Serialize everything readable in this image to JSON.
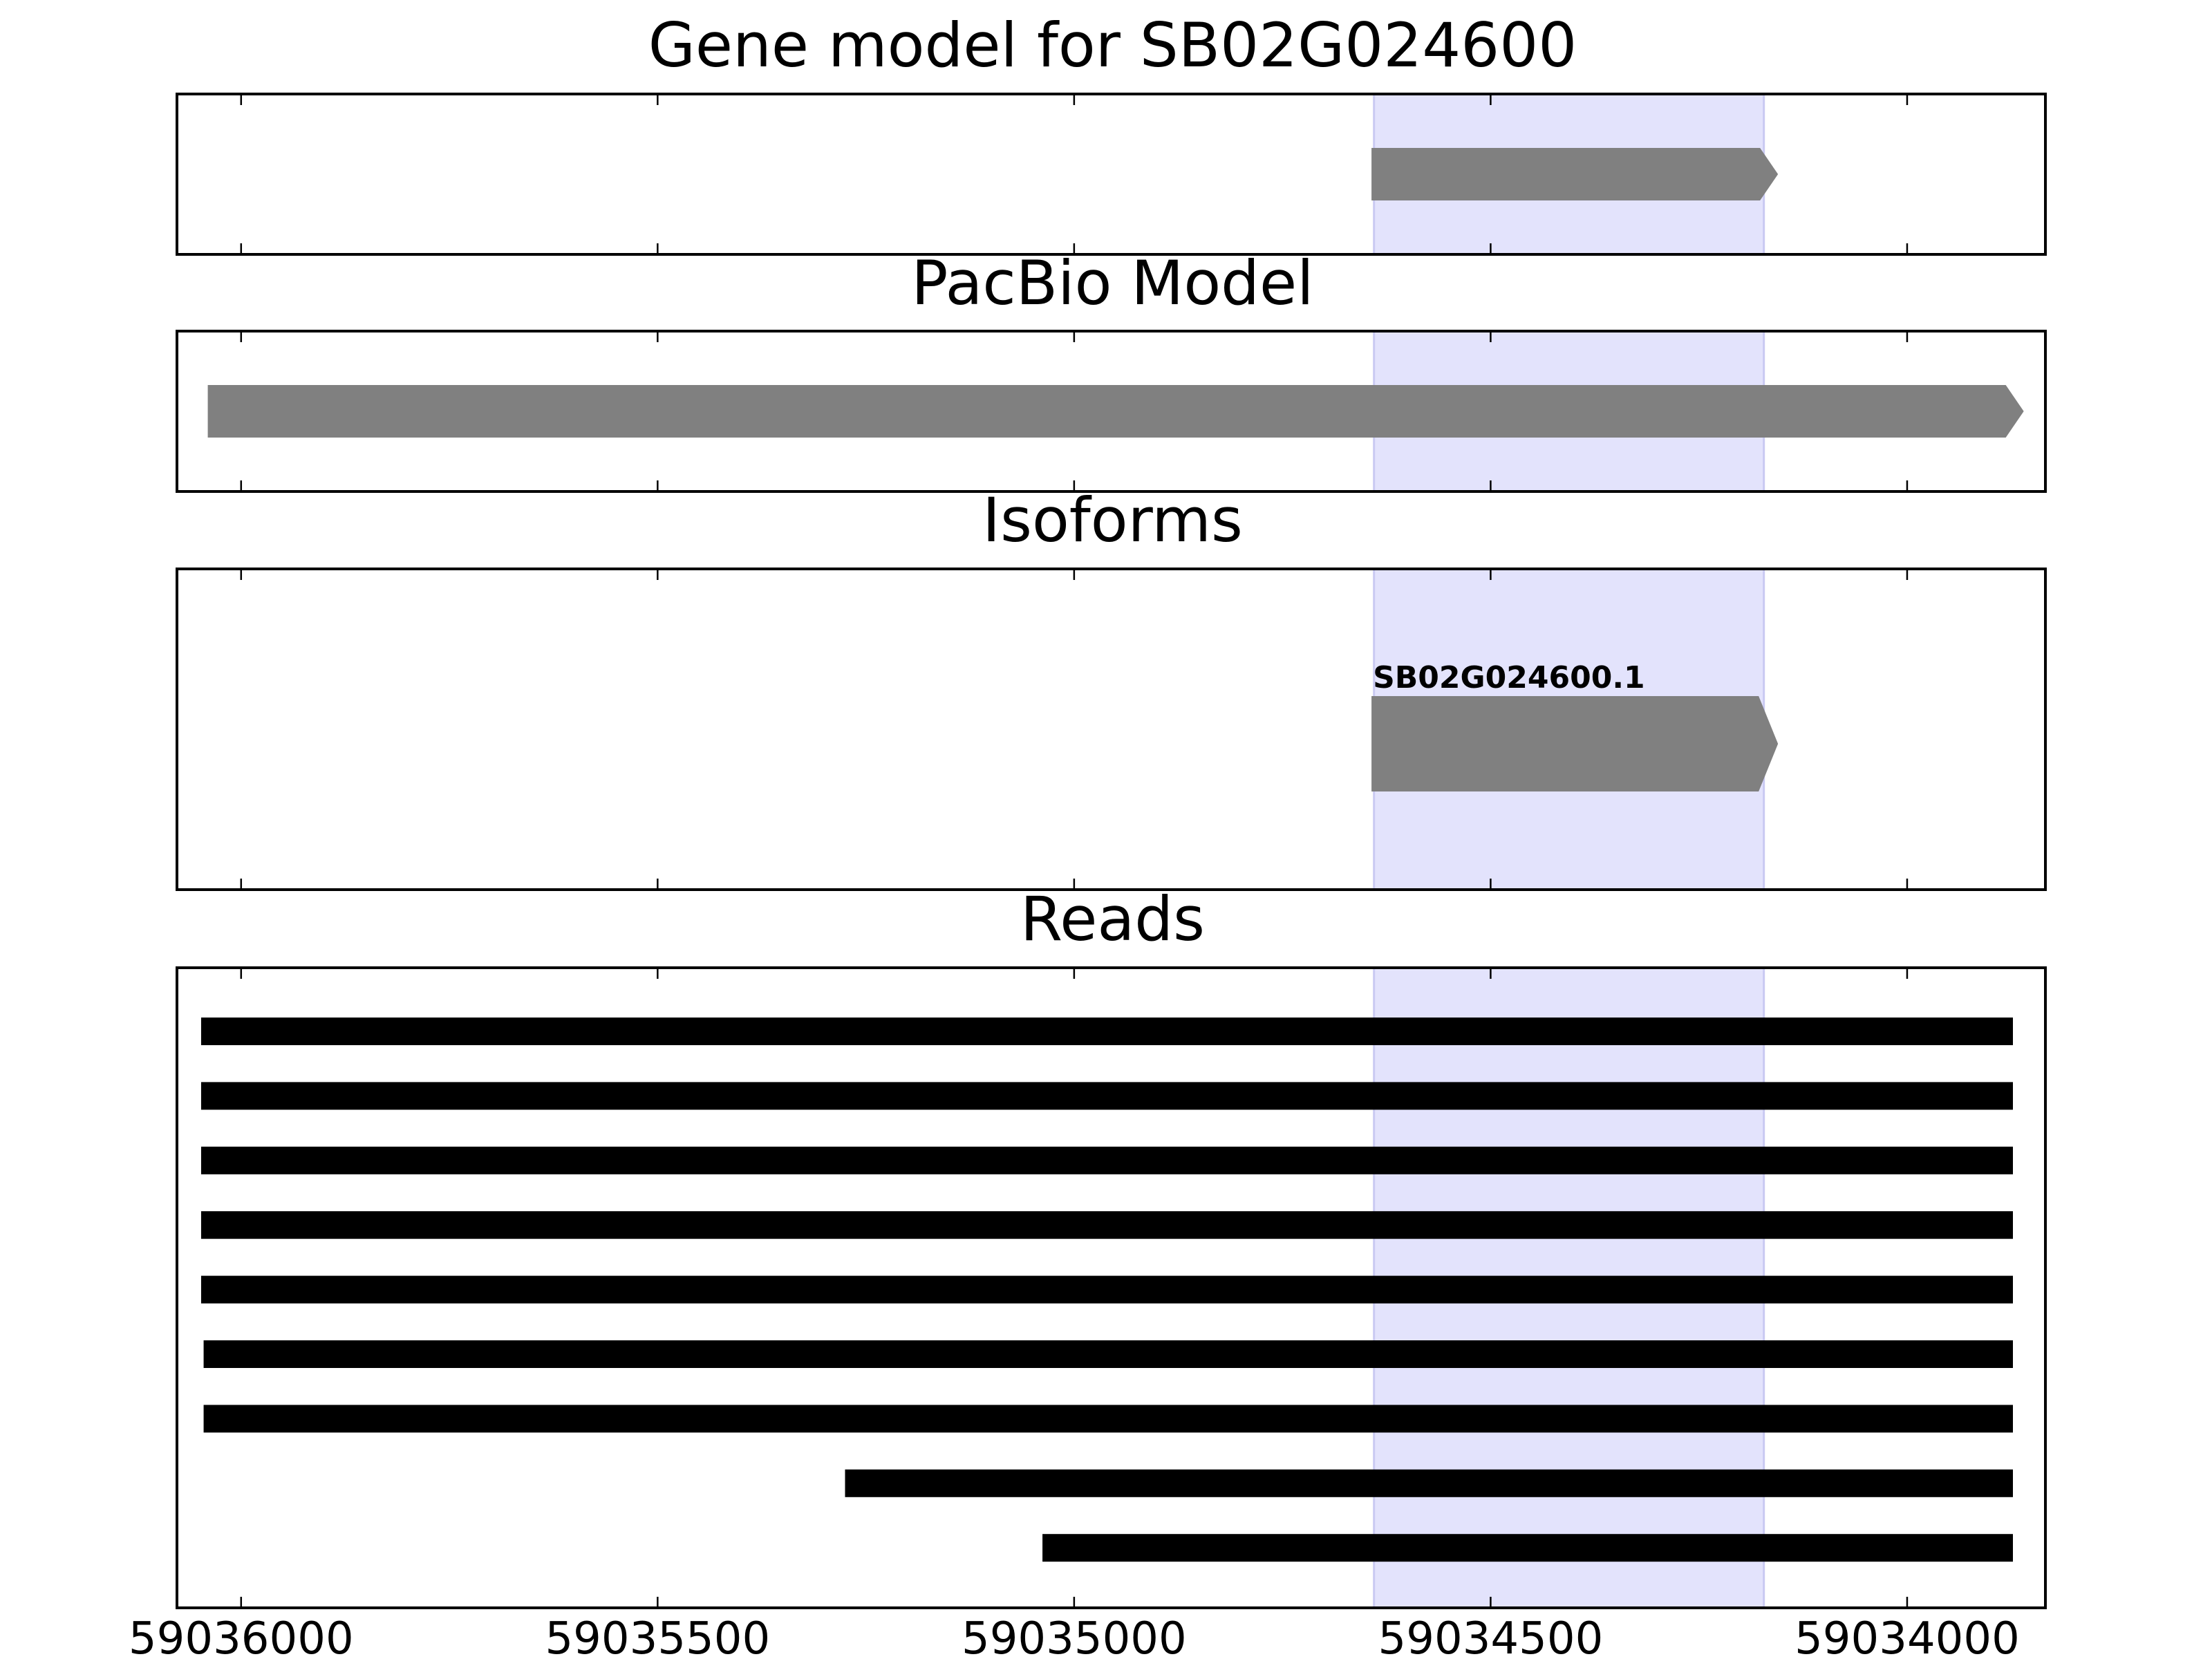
{
  "figure": {
    "x_ticks": [
      59036000,
      59035500,
      59035000,
      59034500,
      59034000
    ],
    "x_tick_labels": [
      "59036000",
      "59035500",
      "59035000",
      "59034500",
      "59034000"
    ],
    "x_range": [
      59036077,
      59033834
    ],
    "highlight_region": [
      59034640,
      59034172
    ],
    "colors": {
      "highlight": "#e3e3fc",
      "feature": "#808080",
      "read": "#000000",
      "axis": "#000000"
    }
  },
  "chart_data": [
    {
      "type": "gene-track",
      "title": "Gene model for SB02G024600",
      "features": [
        {
          "start": 59034643,
          "end": 59034155,
          "strand": "-"
        }
      ]
    },
    {
      "type": "gene-track",
      "title": "PacBio Model",
      "features": [
        {
          "start": 59036040,
          "end": 59033860,
          "strand": "-"
        }
      ]
    },
    {
      "type": "gene-track",
      "title": "Isoforms",
      "features": [
        {
          "start": 59034643,
          "end": 59034155,
          "strand": "-",
          "label": "SB02G024600.1"
        }
      ]
    },
    {
      "type": "read-track",
      "title": "Reads",
      "reads": [
        {
          "start": 59036048,
          "end": 59033873
        },
        {
          "start": 59036048,
          "end": 59033873
        },
        {
          "start": 59036048,
          "end": 59033873
        },
        {
          "start": 59036048,
          "end": 59033873
        },
        {
          "start": 59036048,
          "end": 59033873
        },
        {
          "start": 59036045,
          "end": 59033873
        },
        {
          "start": 59036045,
          "end": 59033873
        },
        {
          "start": 59035275,
          "end": 59033873
        },
        {
          "start": 59035038,
          "end": 59033873
        }
      ]
    }
  ]
}
